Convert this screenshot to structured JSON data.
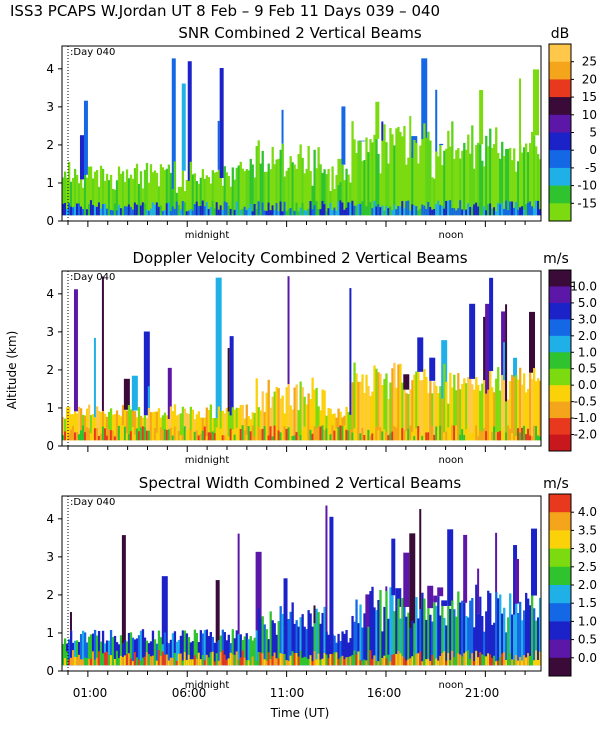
{
  "header": "ISS3 PCAPS W.Jordan UT   8 Feb –   9 Feb 11 Days 039 – 040",
  "y_axis_label": "Altitude (km)",
  "x_axis_label": "Time (UT)",
  "x_tick_labels": [
    "01:00",
    "06:00",
    "11:00",
    "16:00",
    "21:00"
  ],
  "inner_labels": {
    "midnight": "midnight",
    "noon": "noon",
    "day": ":Day 040"
  },
  "palette": [
    "#7CDB10",
    "#2FC42F",
    "#1FB0E8",
    "#1468E6",
    "#1A22C8",
    "#5C17A8",
    "#3A0A38",
    "#E8381E",
    "#F4A51B",
    "#FBD20A",
    "#FFC84A"
  ],
  "chart_data": [
    {
      "type": "heatmap",
      "title": "SNR Combined 2 Vertical Beams",
      "unit": "dB",
      "x_range_hours": [
        23.8,
        24.3
      ],
      "ylim": [
        0,
        4.6
      ],
      "y_ticks": [
        "0",
        "1",
        "2",
        "3",
        "4"
      ],
      "y_tick_values": [
        0,
        1,
        2,
        3,
        4
      ],
      "colorbar": {
        "labels": [
          "25",
          "20",
          "15",
          "10",
          "5",
          "0",
          "-5",
          "-10",
          "-15"
        ],
        "colors": [
          "#FFC84A",
          "#F4A51B",
          "#E8381E",
          "#3A0A38",
          "#5C17A8",
          "#1A22C8",
          "#1468E6",
          "#1FB0E8",
          "#2FC42F",
          "#7CDB10"
        ]
      },
      "dominant_values": "mostly -15 to -10 dB, near-surface layer -5 to 5 dB"
    },
    {
      "type": "heatmap",
      "title": "Doppler Velocity Combined 2 Vertical Beams",
      "unit": "m/s",
      "ylim": [
        0,
        4.6
      ],
      "y_ticks": [
        "0",
        "1",
        "2",
        "3",
        "4"
      ],
      "y_tick_values": [
        0,
        1,
        2,
        3,
        4
      ],
      "colorbar": {
        "labels": [
          "10.0",
          "5.0",
          "3.0",
          "2.0",
          "1.0",
          "0.5",
          "0.0",
          "-0.5",
          "-1.0",
          "-2.0"
        ],
        "colors": [
          "#3A0A38",
          "#5C17A8",
          "#1A22C8",
          "#1468E6",
          "#1FB0E8",
          "#2FC42F",
          "#7CDB10",
          "#FBD20A",
          "#F4A51B",
          "#E8381E",
          "#C8181E"
        ]
      },
      "dominant_values": "mostly -0.5 to 0.0 m/s"
    },
    {
      "type": "heatmap",
      "title": "Spectral Width Combined 2 Vertical Beams",
      "unit": "m/s",
      "ylim": [
        0,
        4.6
      ],
      "y_ticks": [
        "0",
        "1",
        "2",
        "3",
        "4"
      ],
      "y_tick_values": [
        0,
        1,
        2,
        3,
        4
      ],
      "colorbar": {
        "labels": [
          "4.0",
          "3.5",
          "3.0",
          "2.5",
          "2.0",
          "1.5",
          "1.0",
          "0.5",
          "0.0"
        ],
        "colors": [
          "#E8381E",
          "#F4A51B",
          "#FBD20A",
          "#7CDB10",
          "#2FC42F",
          "#1FB0E8",
          "#1468E6",
          "#1A22C8",
          "#5C17A8",
          "#3A0A38"
        ]
      },
      "dominant_values": "mostly 0.5 to 1.0 m/s"
    }
  ]
}
